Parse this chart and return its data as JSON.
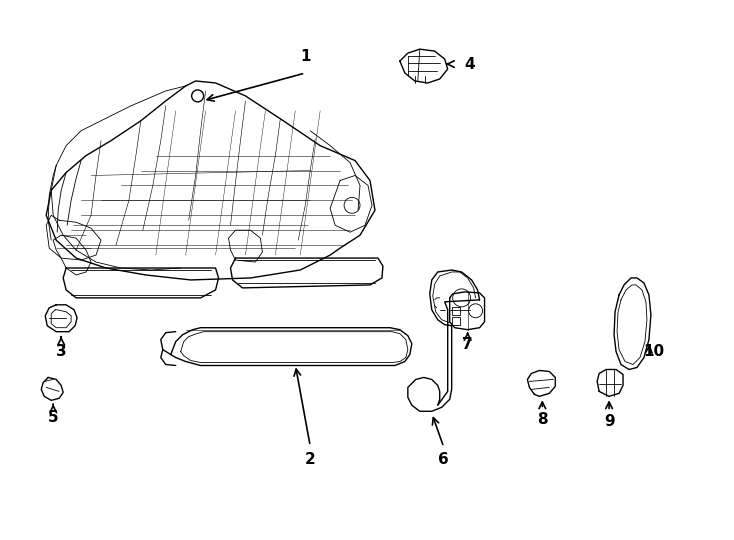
{
  "bg_color": "#ffffff",
  "line_color": "#000000",
  "fig_width": 7.34,
  "fig_height": 5.4,
  "dpi": 100,
  "label_fontsize": 11,
  "arrow_lw": 1.2,
  "parts_lw": 1.0,
  "detail_lw": 0.6
}
